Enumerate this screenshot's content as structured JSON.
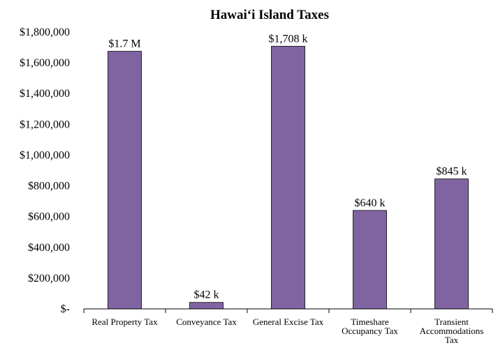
{
  "chart_data": {
    "type": "bar",
    "title": "Hawai‘i Island Taxes",
    "xlabel": "",
    "ylabel": "",
    "categories": [
      [
        "Real Property Tax"
      ],
      [
        "Conveyance Tax"
      ],
      [
        "General Excise Tax"
      ],
      [
        "Timeshare",
        "Occupancy Tax"
      ],
      [
        "Transient",
        "Accommodations",
        "Tax"
      ]
    ],
    "values": [
      1675000,
      42000,
      1708000,
      640000,
      845000
    ],
    "data_labels": [
      "$1.7 M",
      "$42 k",
      "$1,708 k",
      "$640 k",
      "$845 k"
    ],
    "ylim": [
      0,
      1800000
    ],
    "y_ticks": [
      {
        "value": 0,
        "label": "$-"
      },
      {
        "value": 200000,
        "label": "$200,000"
      },
      {
        "value": 400000,
        "label": "$400,000"
      },
      {
        "value": 600000,
        "label": "$600,000"
      },
      {
        "value": 800000,
        "label": "$800,000"
      },
      {
        "value": 1000000,
        "label": "$1,000,000"
      },
      {
        "value": 1200000,
        "label": "$1,200,000"
      },
      {
        "value": 1400000,
        "label": "$1,400,000"
      },
      {
        "value": 1600000,
        "label": "$1,600,000"
      },
      {
        "value": 1800000,
        "label": "$1,800,000"
      }
    ],
    "grid": false,
    "bar_color": "#8064A2"
  }
}
